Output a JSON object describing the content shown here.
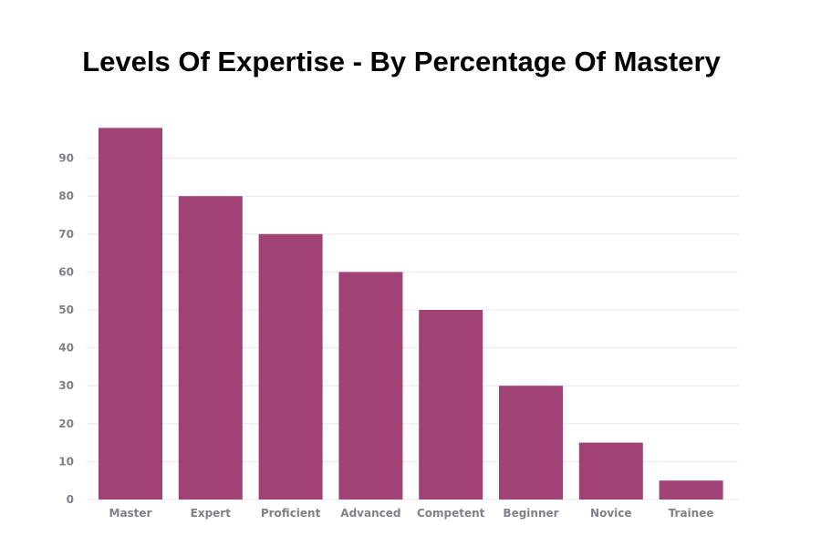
{
  "chart_data": {
    "type": "bar",
    "title": "Levels Of Expertise - By Percentage Of Mastery",
    "xlabel": "",
    "ylabel": "",
    "categories": [
      "Master",
      "Expert",
      "Proficient",
      "Advanced",
      "Competent",
      "Beginner",
      "Novice",
      "Trainee"
    ],
    "values": [
      98,
      80,
      70,
      60,
      50,
      30,
      15,
      5
    ],
    "yticks": [
      0,
      10,
      20,
      30,
      40,
      50,
      60,
      70,
      80,
      90
    ],
    "ylim": [
      0,
      100
    ],
    "grid": true,
    "legend": "none",
    "colors": {
      "bar": "#a04374",
      "grid": "#e9e9ee",
      "tick_text": "#808089",
      "title": "#000000"
    }
  }
}
